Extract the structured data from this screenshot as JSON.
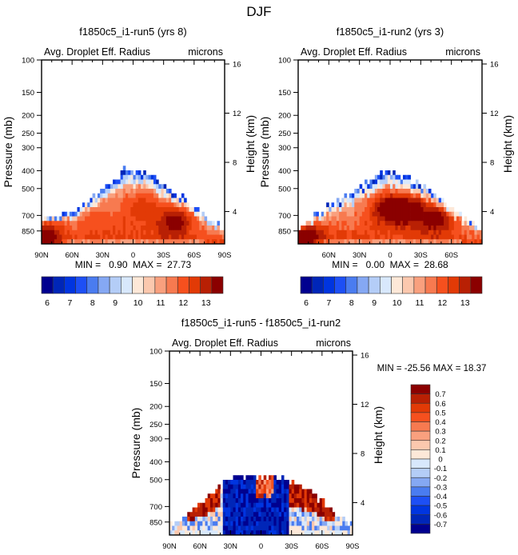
{
  "figure_title": "DJF",
  "chart_data": [
    {
      "type": "heatmap",
      "id": "panel1",
      "title": "f1850c5_i1-run5 (yrs 8)",
      "left_title": "Avg. Droplet Eff. Radius",
      "right_title": "microns",
      "ylabel": "Pressure (mb)",
      "ylabel_right": "Height (km)",
      "yticks": [
        100,
        150,
        200,
        250,
        300,
        400,
        500,
        700,
        850
      ],
      "ylim": [
        100,
        1000
      ],
      "yscale": "log",
      "yticks_right": [
        4,
        8,
        12,
        16
      ],
      "xticks": [
        "90N",
        "60N",
        "30N",
        "0",
        "30S",
        "60S",
        "90S"
      ],
      "xlim": [
        90,
        -90
      ],
      "stats": "MIN =   0.90  MAX =  27.73",
      "colorbar": {
        "orientation": "horizontal",
        "levels": [
          5.5,
          6,
          6.5,
          7,
          7.5,
          8,
          8.5,
          9,
          9.5,
          10,
          10.5,
          11,
          11.5,
          12,
          12.5,
          13
        ],
        "tick_labels": [
          "6",
          "7",
          "8",
          "9",
          "10",
          "11",
          "12",
          "13"
        ],
        "colors": [
          "#00008f",
          "#0026b8",
          "#0035e0",
          "#1d4ff5",
          "#4a7cf0",
          "#85a8f3",
          "#b4cdf7",
          "#d8e8fc",
          "#fde8d8",
          "#fbc8ae",
          "#f9a07e",
          "#f77a50",
          "#f6501e",
          "#e23a06",
          "#b82004",
          "#8b0000"
        ]
      },
      "field": {
        "description": "effective radius 10-13 microns below 500mb, max ~13+ near 40S 750mb, blue (6-8) fringes at cloud top near 400-500mb",
        "cloud_top_mb": [
          [
            85,
            740
          ],
          [
            70,
            700
          ],
          [
            55,
            650
          ],
          [
            40,
            570
          ],
          [
            25,
            480
          ],
          [
            10,
            400
          ],
          [
            0,
            400
          ],
          [
            -15,
            420
          ],
          [
            -30,
            480
          ],
          [
            -50,
            560
          ],
          [
            -65,
            660
          ],
          [
            -80,
            760
          ],
          [
            -88,
            830
          ]
        ],
        "hotspots": [
          {
            "lat": -40,
            "p": 760,
            "value": 13.5
          },
          {
            "lat": 86,
            "p": 900,
            "value": 13.5
          },
          {
            "lat": -10,
            "p": 640,
            "value": 12.5
          },
          {
            "lat": 35,
            "p": 780,
            "value": 12.0
          }
        ]
      }
    },
    {
      "type": "heatmap",
      "id": "panel2",
      "title": "f1850c5_i1-run2 (yrs 3)",
      "left_title": "Avg. Droplet Eff. Radius",
      "right_title": "microns",
      "ylabel": "Pressure (mb)",
      "ylabel_right": "Height (km)",
      "yticks": [
        100,
        150,
        200,
        250,
        300,
        400,
        500,
        700,
        850
      ],
      "ylim": [
        100,
        1000
      ],
      "yscale": "log",
      "yticks_right": [
        4,
        8,
        12,
        16
      ],
      "xticks": [
        "60N",
        "30N",
        "0",
        "30S",
        "60S"
      ],
      "xlim": [
        90,
        -90
      ],
      "stats": "MIN =   0.00  MAX =  28.68",
      "colorbar": {
        "orientation": "horizontal",
        "levels": [
          5.5,
          6,
          6.5,
          7,
          7.5,
          8,
          8.5,
          9,
          9.5,
          10,
          10.5,
          11,
          11.5,
          12,
          12.5,
          13
        ],
        "tick_labels": [
          "6",
          "7",
          "8",
          "9",
          "10",
          "11",
          "12",
          "13"
        ],
        "colors": [
          "#00008f",
          "#0026b8",
          "#0035e0",
          "#1d4ff5",
          "#4a7cf0",
          "#85a8f3",
          "#b4cdf7",
          "#d8e8fc",
          "#fde8d8",
          "#fbc8ae",
          "#f9a07e",
          "#f77a50",
          "#f6501e",
          "#e23a06",
          "#b82004",
          "#8b0000"
        ]
      },
      "field": {
        "description": "broad maximum >13 microns from 15N to 50S, 600-800mb; dark red columns near 400mb",
        "cloud_top_mb": [
          [
            85,
            800
          ],
          [
            70,
            680
          ],
          [
            55,
            600
          ],
          [
            40,
            540
          ],
          [
            25,
            480
          ],
          [
            15,
            440
          ],
          [
            0,
            400
          ],
          [
            -20,
            440
          ],
          [
            -35,
            500
          ],
          [
            -50,
            560
          ],
          [
            -65,
            680
          ],
          [
            -80,
            760
          ],
          [
            -88,
            830
          ]
        ],
        "hotspots": [
          {
            "lat": 0,
            "p": 650,
            "value": 14
          },
          {
            "lat": -20,
            "p": 660,
            "value": 14
          },
          {
            "lat": -45,
            "p": 740,
            "value": 13.5
          },
          {
            "lat": 82,
            "p": 900,
            "value": 13.5
          }
        ]
      }
    },
    {
      "type": "heatmap",
      "id": "panel3",
      "title": "f1850c5_i1-run5 - f1850c5_i1-run2",
      "left_title": "Avg. Droplet Eff. Radius",
      "right_title": "microns",
      "ylabel": "Pressure (mb)",
      "ylabel_right": "Height (km)",
      "yticks": [
        100,
        150,
        200,
        250,
        300,
        400,
        500,
        700,
        850
      ],
      "ylim": [
        100,
        1000
      ],
      "yscale": "log",
      "yticks_right": [
        4,
        8,
        12,
        16
      ],
      "xticks": [
        "90N",
        "60N",
        "30N",
        "0",
        "30S",
        "60S",
        "90S"
      ],
      "xlim": [
        90,
        -90
      ],
      "stats": "MIN = -25.56  MAX =  18.37",
      "colorbar": {
        "orientation": "vertical",
        "levels": [
          -0.75,
          -0.7,
          -0.6,
          -0.5,
          -0.4,
          -0.3,
          -0.2,
          -0.1,
          0,
          0.1,
          0.2,
          0.3,
          0.4,
          0.5,
          0.6,
          0.7
        ],
        "tick_labels": [
          "0.7",
          "0.6",
          "0.5",
          "0.4",
          "0.3",
          "0.2",
          "0.1",
          "0",
          "-0.1",
          "-0.2",
          "-0.3",
          "-0.4",
          "-0.5",
          "-0.6",
          "-0.7"
        ],
        "colors": [
          "#8b0000",
          "#b82004",
          "#e23a06",
          "#f6501e",
          "#f77a50",
          "#f9a07e",
          "#fbc8ae",
          "#fde8d8",
          "#d8e8fc",
          "#b4cdf7",
          "#85a8f3",
          "#4a7cf0",
          "#1d4ff5",
          "#0035e0",
          "#0026b8",
          "#00008f"
        ]
      },
      "field": {
        "description": "strong negative (dark blue) difference 40N-30S below 500mb; positive (dark red) at cloud edges 30S-70S and 50N-70N",
        "cloud_top_mb": [
          [
            85,
            860
          ],
          [
            75,
            790
          ],
          [
            60,
            680
          ],
          [
            45,
            580
          ],
          [
            30,
            490
          ],
          [
            15,
            480
          ],
          [
            0,
            480
          ],
          [
            -20,
            480
          ],
          [
            -35,
            530
          ],
          [
            -50,
            600
          ],
          [
            -65,
            690
          ],
          [
            -80,
            790
          ],
          [
            -88,
            860
          ]
        ]
      }
    }
  ]
}
